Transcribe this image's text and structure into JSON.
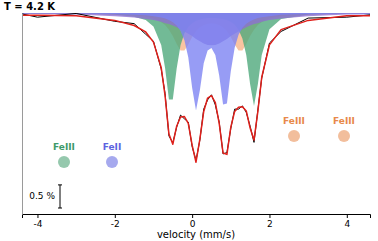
{
  "chart_data": {
    "type": "line",
    "title": "T = 4.2 K",
    "x_label": "velocity (mm/s)",
    "x": [
      -4.4,
      -4,
      -3,
      -2,
      -1.5,
      -1.2,
      -1.0,
      -0.8,
      -0.7,
      -0.6,
      -0.5,
      -0.4,
      -0.3,
      -0.2,
      -0.1,
      0,
      0.1,
      0.2,
      0.3,
      0.4,
      0.5,
      0.6,
      0.7,
      0.8,
      0.9,
      1.0,
      1.1,
      1.2,
      1.3,
      1.4,
      1.5,
      1.6,
      1.7,
      1.8,
      2.0,
      2.3,
      3,
      4,
      4.6
    ],
    "xlim": [
      -4.4,
      4.6
    ],
    "xticks": [
      -4,
      -2,
      0,
      2,
      4
    ],
    "ylim": [
      95.65,
      100
    ],
    "tick_labels": "x",
    "grid": false,
    "series": [
      {
        "type": "area",
        "color": "#f7b58a",
        "values": [
          99.99,
          99.99,
          99.99,
          99.97,
          99.95,
          99.92,
          99.88,
          99.8,
          99.74,
          99.64,
          99.5,
          99.33,
          99.19,
          99.19,
          99.32,
          99.48,
          99.61,
          99.69,
          99.74,
          99.77,
          99.78,
          99.77,
          99.74,
          99.69,
          99.61,
          99.48,
          99.32,
          99.19,
          99.19,
          99.33,
          99.5,
          99.64,
          99.74,
          99.8,
          99.88,
          99.93,
          99.97,
          99.99,
          99.99
        ]
      },
      {
        "type": "area",
        "color": "#4fa97c",
        "values": [
          99.99,
          99.99,
          99.99,
          99.96,
          99.92,
          99.85,
          99.71,
          99.31,
          98.81,
          98.13,
          98.13,
          98.8,
          99.3,
          99.56,
          99.7,
          99.78,
          99.83,
          99.86,
          99.88,
          99.89,
          99.89,
          99.89,
          99.88,
          99.87,
          99.85,
          99.81,
          99.75,
          99.64,
          99.45,
          99.09,
          98.46,
          97.99,
          98.46,
          99.09,
          99.65,
          99.87,
          99.96,
          99.99,
          99.99
        ]
      },
      {
        "type": "area",
        "color": "#8e6fd1",
        "values": [
          99.98,
          99.98,
          99.97,
          99.93,
          99.9,
          99.87,
          99.85,
          99.81,
          99.78,
          99.76,
          99.73,
          99.69,
          99.65,
          99.6,
          99.55,
          99.5,
          99.44,
          99.39,
          99.34,
          99.31,
          99.3,
          99.31,
          99.34,
          99.39,
          99.44,
          99.5,
          99.55,
          99.6,
          99.65,
          99.69,
          99.73,
          99.76,
          99.78,
          99.81,
          99.85,
          99.88,
          99.93,
          99.97,
          99.97
        ]
      },
      {
        "type": "area",
        "color": "#7d83f2",
        "values": [
          99.99,
          99.99,
          99.99,
          99.98,
          99.96,
          99.95,
          99.93,
          99.9,
          99.88,
          99.85,
          99.8,
          99.73,
          99.61,
          99.41,
          99.04,
          98.38,
          97.89,
          98.33,
          98.91,
          99.19,
          99.24,
          99.09,
          98.65,
          98.02,
          98.04,
          98.74,
          99.25,
          99.53,
          99.68,
          99.77,
          99.82,
          99.86,
          99.89,
          99.91,
          99.93,
          99.96,
          99.98,
          99.99,
          99.99
        ]
      },
      {
        "type": "line",
        "color": "#000000",
        "values": [
          99.98,
          99.91,
          99.99,
          99.82,
          99.77,
          99.54,
          99.39,
          98.79,
          98.26,
          97.34,
          97.19,
          97.53,
          97.79,
          97.71,
          97.64,
          97.11,
          96.81,
          97.25,
          97.92,
          98.12,
          98.23,
          98.01,
          97.64,
          96.95,
          96.98,
          97.5,
          97.92,
          97.92,
          97.99,
          97.85,
          97.55,
          97.2,
          97.9,
          98.59,
          99.35,
          99.6,
          99.89,
          99.91,
          99.96
        ]
      },
      {
        "type": "line",
        "color": "#e0201b",
        "values": [
          99.95,
          99.95,
          99.94,
          99.84,
          99.73,
          99.59,
          99.37,
          98.82,
          98.21,
          97.38,
          97.16,
          97.55,
          97.75,
          97.76,
          97.61,
          97.14,
          96.77,
          97.27,
          97.87,
          98.16,
          98.21,
          98.06,
          97.61,
          96.97,
          96.94,
          97.53,
          97.87,
          97.96,
          97.97,
          97.88,
          97.51,
          97.25,
          97.87,
          98.61,
          99.31,
          99.64,
          99.84,
          99.94,
          99.94
        ]
      }
    ],
    "scale_bar": {
      "value": 0.5,
      "label": "0.5 %"
    },
    "annotations": [
      {
        "text": "FeIII",
        "color": "#3e9a6a"
      },
      {
        "text": "FeII",
        "color": "#5c63e0"
      },
      {
        "text": "FeIII",
        "color": "#e8894a"
      },
      {
        "text": "FeIII",
        "color": "#e8894a"
      }
    ]
  }
}
